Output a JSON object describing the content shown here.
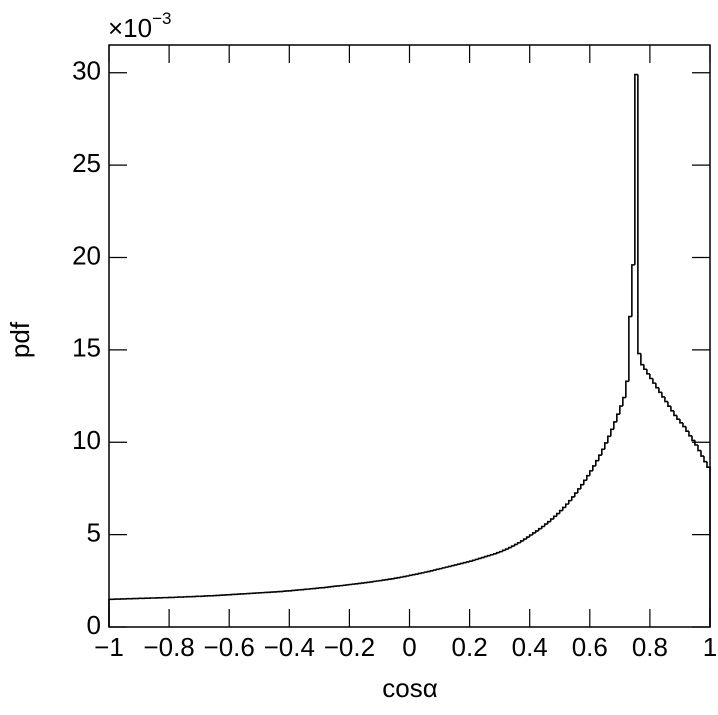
{
  "chart_data": {
    "type": "histogram",
    "x_label": "cosα",
    "y_label": "pdf",
    "multiplier": {
      "base": "×10",
      "exponent": "−3"
    },
    "color": "#000000",
    "xlim": [
      -1,
      1
    ],
    "ylim": [
      0,
      31.5
    ],
    "xticks": [
      {
        "value": -1,
        "label": "−1"
      },
      {
        "value": -0.8,
        "label": "−0.8"
      },
      {
        "value": -0.6,
        "label": "−0.6"
      },
      {
        "value": -0.4,
        "label": "−0.4"
      },
      {
        "value": -0.2,
        "label": "−0.2"
      },
      0,
      0.2,
      0.4,
      0.6,
      0.8,
      1
    ],
    "yticks": [
      0,
      5,
      10,
      15,
      20,
      25,
      30
    ],
    "bins": [
      -1,
      -0.99,
      -0.98,
      -0.97,
      -0.96,
      -0.95,
      -0.94,
      -0.93,
      -0.92,
      -0.91,
      -0.9,
      -0.89,
      -0.88,
      -0.87,
      -0.86,
      -0.85,
      -0.84,
      -0.83,
      -0.82,
      -0.81,
      -0.8,
      -0.79,
      -0.78,
      -0.77,
      -0.76,
      -0.75,
      -0.74,
      -0.73,
      -0.72,
      -0.71,
      -0.7,
      -0.69,
      -0.68,
      -0.67,
      -0.66,
      -0.65,
      -0.64,
      -0.63,
      -0.62,
      -0.61,
      -0.6,
      -0.59,
      -0.58,
      -0.57,
      -0.56,
      -0.55,
      -0.54,
      -0.53,
      -0.52,
      -0.51,
      -0.5,
      -0.49,
      -0.48,
      -0.47,
      -0.46,
      -0.45,
      -0.44,
      -0.43,
      -0.42,
      -0.41,
      -0.4,
      -0.39,
      -0.38,
      -0.37,
      -0.36,
      -0.35,
      -0.34,
      -0.33,
      -0.32,
      -0.31,
      -0.3,
      -0.29,
      -0.28,
      -0.27,
      -0.26,
      -0.25,
      -0.24,
      -0.23,
      -0.22,
      -0.21,
      -0.2,
      -0.19,
      -0.18,
      -0.17,
      -0.16,
      -0.15,
      -0.14,
      -0.13,
      -0.12,
      -0.11,
      -0.1,
      -0.09,
      -0.08,
      -0.07,
      -0.06,
      -0.05,
      -0.04,
      -0.03,
      -0.02,
      -0.01,
      0,
      0.01,
      0.02,
      0.03,
      0.04,
      0.05,
      0.06,
      0.07,
      0.08,
      0.09,
      0.1,
      0.11,
      0.12,
      0.13,
      0.14,
      0.15,
      0.16,
      0.17,
      0.18,
      0.19,
      0.2,
      0.21,
      0.22,
      0.23,
      0.24,
      0.25,
      0.26,
      0.27,
      0.28,
      0.29,
      0.3,
      0.31,
      0.32,
      0.33,
      0.34,
      0.35,
      0.36,
      0.37,
      0.38,
      0.39,
      0.4,
      0.41,
      0.42,
      0.43,
      0.44,
      0.45,
      0.46,
      0.47,
      0.48,
      0.49,
      0.5,
      0.51,
      0.52,
      0.53,
      0.54,
      0.55,
      0.56,
      0.57,
      0.58,
      0.59,
      0.6,
      0.61,
      0.62,
      0.63,
      0.64,
      0.65,
      0.66,
      0.67,
      0.68,
      0.69,
      0.7,
      0.71,
      0.72,
      0.73,
      0.74,
      0.75,
      0.76,
      0.77,
      0.78,
      0.79,
      0.8,
      0.81,
      0.82,
      0.83,
      0.84,
      0.85,
      0.86,
      0.87,
      0.88,
      0.89,
      0.9,
      0.91,
      0.92,
      0.93,
      0.94,
      0.95,
      0.96,
      0.97,
      0.98,
      0.99,
      1
    ],
    "values": [
      1.5,
      1.5,
      1.51,
      1.51,
      1.52,
      1.52,
      1.53,
      1.53,
      1.54,
      1.54,
      1.55,
      1.55,
      1.56,
      1.56,
      1.57,
      1.57,
      1.58,
      1.58,
      1.59,
      1.59,
      1.6,
      1.6,
      1.61,
      1.62,
      1.62,
      1.63,
      1.64,
      1.64,
      1.65,
      1.66,
      1.66,
      1.67,
      1.68,
      1.69,
      1.69,
      1.7,
      1.71,
      1.72,
      1.73,
      1.74,
      1.75,
      1.76,
      1.77,
      1.78,
      1.79,
      1.8,
      1.81,
      1.82,
      1.83,
      1.84,
      1.85,
      1.86,
      1.87,
      1.88,
      1.89,
      1.9,
      1.91,
      1.92,
      1.94,
      1.95,
      1.96,
      1.98,
      1.99,
      2.01,
      2.02,
      2.04,
      2.05,
      2.07,
      2.08,
      2.1,
      2.12,
      2.13,
      2.15,
      2.17,
      2.19,
      2.21,
      2.22,
      2.24,
      2.26,
      2.28,
      2.3,
      2.32,
      2.34,
      2.36,
      2.38,
      2.4,
      2.42,
      2.44,
      2.47,
      2.49,
      2.51,
      2.54,
      2.56,
      2.59,
      2.61,
      2.64,
      2.67,
      2.7,
      2.73,
      2.76,
      2.8,
      2.83,
      2.86,
      2.9,
      2.93,
      2.97,
      3.0,
      3.04,
      3.08,
      3.12,
      3.16,
      3.2,
      3.24,
      3.28,
      3.32,
      3.36,
      3.4,
      3.44,
      3.48,
      3.52,
      3.56,
      3.61,
      3.66,
      3.71,
      3.76,
      3.81,
      3.86,
      3.91,
      3.96,
      4.02,
      4.08,
      4.15,
      4.22,
      4.3,
      4.38,
      4.47,
      4.56,
      4.66,
      4.76,
      4.87,
      4.98,
      5.09,
      5.2,
      5.32,
      5.44,
      5.57,
      5.7,
      5.84,
      5.99,
      6.14,
      6.3,
      6.47,
      6.65,
      6.84,
      7.04,
      7.25,
      7.47,
      7.7,
      7.94,
      8.19,
      8.45,
      8.72,
      9.0,
      9.3,
      9.62,
      9.96,
      10.32,
      10.7,
      11.1,
      11.52,
      11.96,
      12.42,
      13.3,
      16.8,
      19.6,
      29.9,
      14.8,
      14.2,
      13.95,
      13.7,
      13.45,
      13.2,
      12.95,
      12.7,
      12.45,
      12.2,
      11.95,
      11.7,
      11.45,
      11.25,
      11.05,
      10.85,
      10.6,
      10.35,
      10.1,
      9.85,
      9.55,
      9.25,
      8.95,
      8.65
    ]
  }
}
